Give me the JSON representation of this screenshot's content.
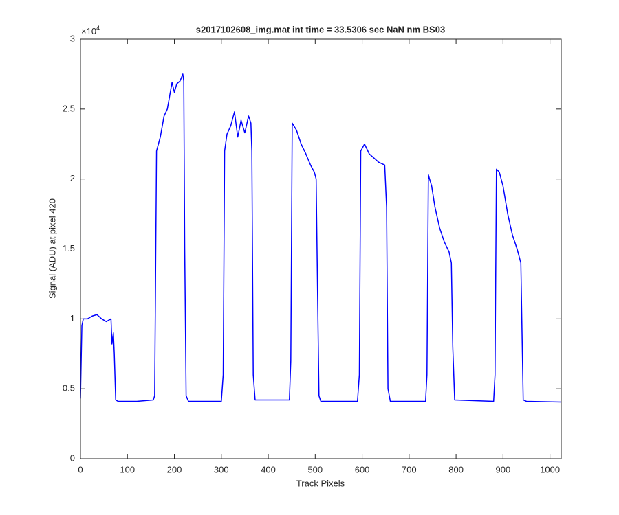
{
  "chart_data": {
    "type": "line",
    "title": "s2017102608_img.mat int time = 33.5306 sec  NaN nm BS03",
    "x_label": "Track Pixels",
    "y_label": "Signal (ADU) at pixel 420",
    "y_multiplier": {
      "base": "×10",
      "exponent": "4"
    },
    "xlim": [
      0,
      1024
    ],
    "ylim": [
      0,
      3
    ],
    "xticks": [
      0,
      100,
      200,
      300,
      400,
      500,
      600,
      700,
      800,
      900,
      1000
    ],
    "yticks": [
      0,
      0.5,
      1,
      1.5,
      2,
      2.5,
      3
    ],
    "x": [
      0,
      3,
      6,
      15,
      25,
      35,
      45,
      55,
      65,
      67,
      70,
      72,
      75,
      80,
      120,
      155,
      158,
      162,
      170,
      178,
      185,
      195,
      200,
      205,
      212,
      218,
      220,
      222,
      225,
      230,
      300,
      304,
      307,
      312,
      320,
      328,
      335,
      342,
      350,
      358,
      363,
      365,
      368,
      372,
      445,
      448,
      451,
      460,
      470,
      480,
      490,
      498,
      502,
      505,
      508,
      512,
      590,
      594,
      597,
      605,
      615,
      625,
      635,
      648,
      652,
      655,
      660,
      735,
      738,
      741,
      748,
      755,
      765,
      775,
      785,
      790,
      793,
      797,
      880,
      883,
      886,
      892,
      900,
      910,
      920,
      930,
      938,
      940,
      943,
      950,
      1024
    ],
    "series": [
      {
        "color": "#0000ff",
        "values": [
          0.43,
          0.95,
          1.0,
          1.0,
          1.02,
          1.03,
          1.0,
          0.98,
          1.0,
          0.82,
          0.9,
          0.75,
          0.42,
          0.41,
          0.41,
          0.42,
          0.45,
          2.2,
          2.3,
          2.45,
          2.5,
          2.69,
          2.62,
          2.68,
          2.7,
          2.75,
          2.7,
          1.5,
          0.45,
          0.41,
          0.41,
          0.6,
          2.2,
          2.32,
          2.38,
          2.48,
          2.3,
          2.42,
          2.33,
          2.45,
          2.4,
          2.2,
          0.6,
          0.42,
          0.42,
          0.7,
          2.4,
          2.35,
          2.25,
          2.18,
          2.1,
          2.05,
          2.0,
          1.2,
          0.45,
          0.41,
          0.41,
          0.6,
          2.2,
          2.25,
          2.18,
          2.15,
          2.12,
          2.1,
          1.8,
          0.5,
          0.41,
          0.41,
          0.6,
          2.03,
          1.95,
          1.8,
          1.65,
          1.55,
          1.48,
          1.4,
          0.8,
          0.42,
          0.41,
          0.6,
          2.07,
          2.05,
          1.95,
          1.75,
          1.6,
          1.5,
          1.4,
          1.0,
          0.42,
          0.41,
          0.405
        ]
      }
    ],
    "grid": false
  }
}
